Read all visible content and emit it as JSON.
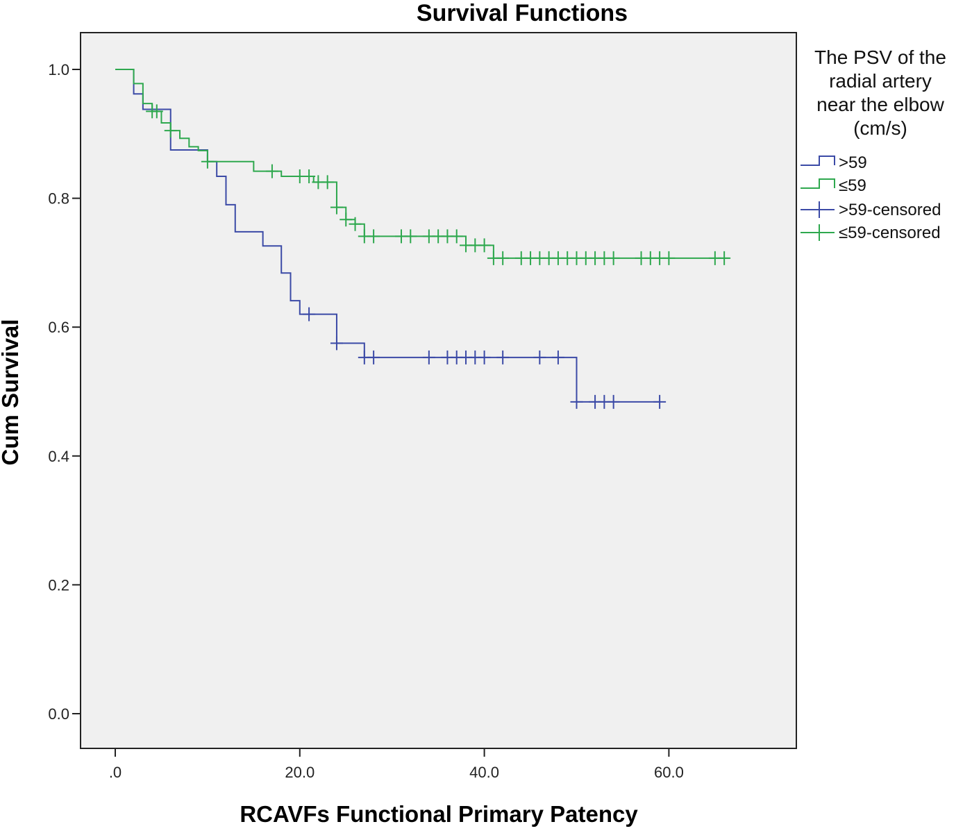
{
  "chart_data": {
    "type": "line",
    "subtype": "kaplan-meier step",
    "title": "Survival Functions",
    "xlabel": "RCAVFs Functional Primary Patency",
    "ylabel": "Cum Survival",
    "xlim": [
      -4,
      74
    ],
    "ylim": [
      -0.05,
      1.05
    ],
    "xticks": [
      ".0",
      "20.0",
      "40.0",
      "60.0"
    ],
    "xtick_values": [
      0,
      20,
      40,
      60
    ],
    "yticks": [
      "0.0",
      "0.2",
      "0.4",
      "0.6",
      "0.8",
      "1.0"
    ],
    "ytick_values": [
      0,
      0.2,
      0.4,
      0.6,
      0.8,
      1.0
    ],
    "grid": false,
    "background": "#f0f0f0",
    "legend": {
      "placement": "right",
      "title_lines": [
        "The PSV of the",
        "radial artery",
        "near the elbow",
        "(cm/s)"
      ],
      "entries": [
        ">59",
        "≤59",
        ">59-censored",
        "≤59-censored"
      ]
    },
    "series": [
      {
        "name": ">59",
        "color": "#3b4aa6",
        "steps": [
          [
            0,
            1.0
          ],
          [
            2,
            0.962
          ],
          [
            3,
            0.938
          ],
          [
            6,
            0.875
          ],
          [
            10,
            0.857
          ],
          [
            11,
            0.834
          ],
          [
            12,
            0.79
          ],
          [
            13,
            0.748
          ],
          [
            16,
            0.726
          ],
          [
            18,
            0.684
          ],
          [
            19,
            0.641
          ],
          [
            20,
            0.62
          ],
          [
            24,
            0.575
          ],
          [
            27,
            0.553
          ],
          [
            50,
            0.484
          ]
        ],
        "end": 59,
        "censored": [
          21,
          24,
          27,
          28,
          34,
          36,
          37,
          38,
          39,
          40,
          42,
          46,
          48,
          50,
          52,
          53,
          54,
          59
        ]
      },
      {
        "name": "≤59",
        "color": "#2ea84e",
        "steps": [
          [
            0,
            1.0
          ],
          [
            2,
            0.978
          ],
          [
            3,
            0.947
          ],
          [
            4,
            0.935
          ],
          [
            5,
            0.917
          ],
          [
            6,
            0.905
          ],
          [
            7,
            0.893
          ],
          [
            8,
            0.88
          ],
          [
            9,
            0.874
          ],
          [
            10,
            0.857
          ],
          [
            15,
            0.842
          ],
          [
            18,
            0.834
          ],
          [
            21.5,
            0.825
          ],
          [
            24,
            0.786
          ],
          [
            25,
            0.767
          ],
          [
            26,
            0.76
          ],
          [
            27,
            0.741
          ],
          [
            38,
            0.727
          ],
          [
            41,
            0.707
          ]
        ],
        "end": 66.5,
        "censored": [
          4,
          4.5,
          6,
          10,
          17,
          20,
          21,
          22,
          23,
          24,
          25,
          26,
          27,
          28,
          31,
          32,
          34,
          35,
          36,
          37,
          38,
          39,
          40,
          41,
          42,
          44,
          45,
          46,
          47,
          48,
          49,
          50,
          51,
          52,
          53,
          54,
          57,
          58,
          59,
          60,
          65,
          66
        ]
      }
    ]
  }
}
